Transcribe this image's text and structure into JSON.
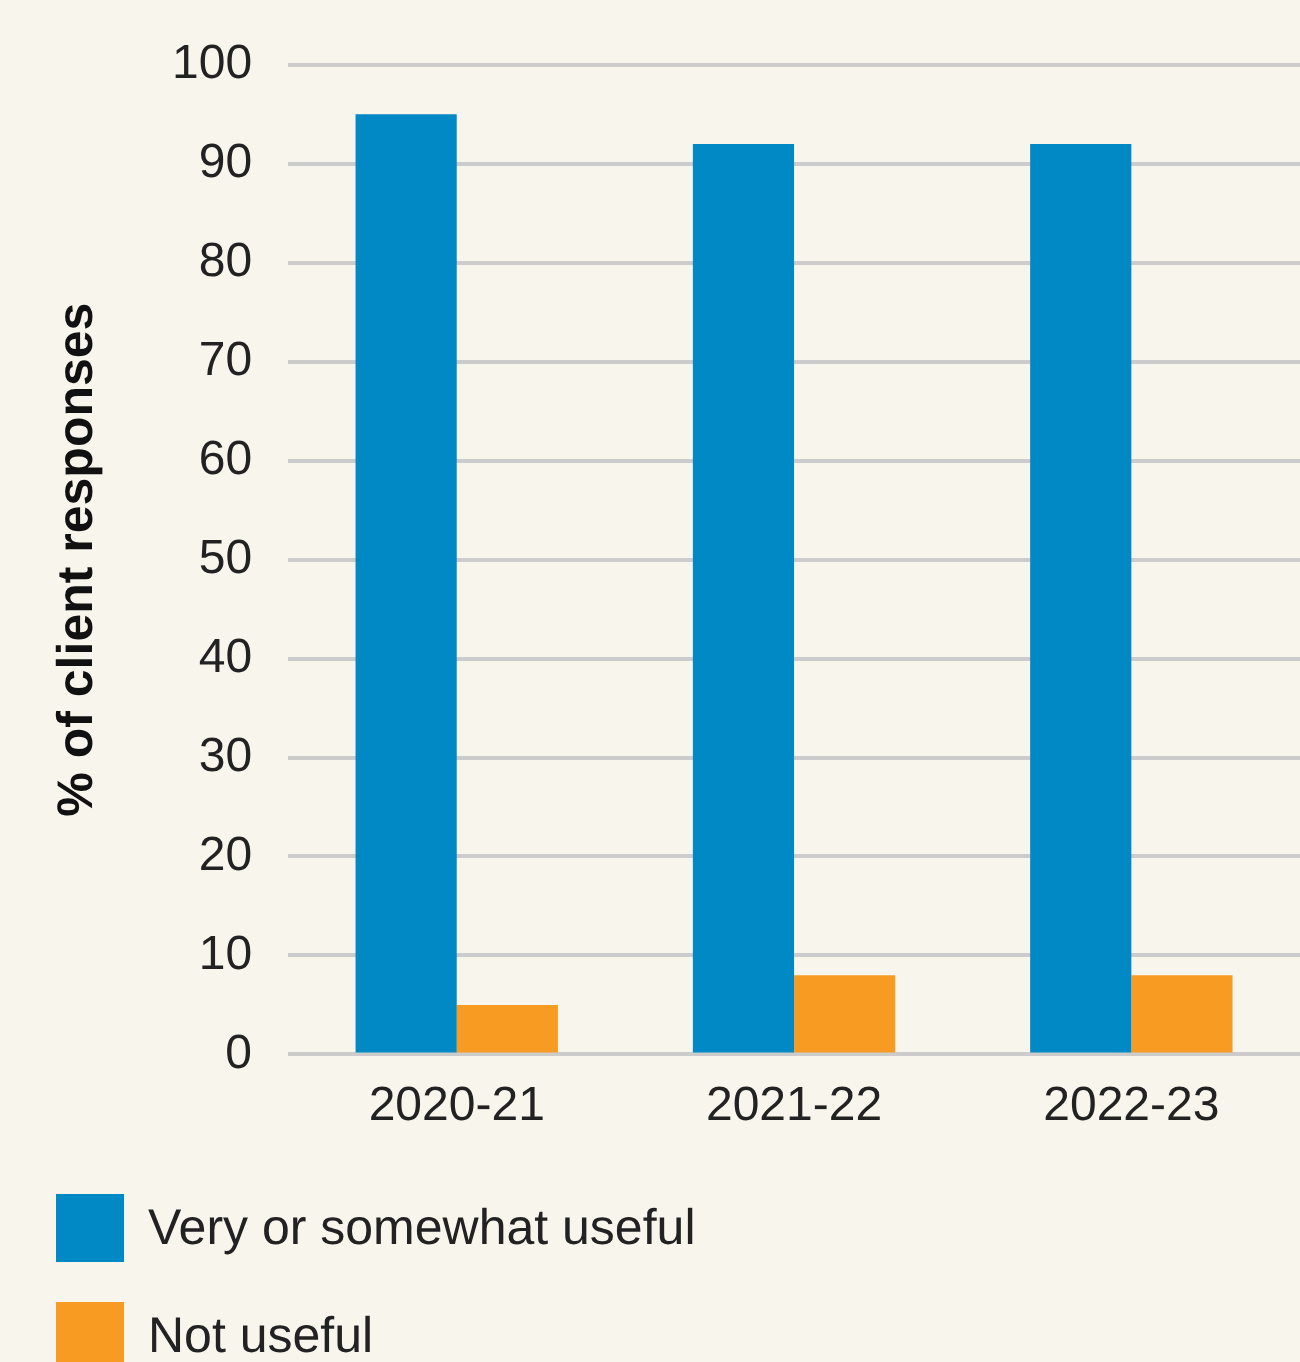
{
  "chart_data": {
    "type": "bar",
    "ylabel": "% of client responses",
    "categories": [
      "2020-21",
      "2021-22",
      "2022-23"
    ],
    "series": [
      {
        "name": "Very or somewhat useful",
        "color": "#0089c5",
        "values": [
          95,
          92,
          92
        ]
      },
      {
        "name": "Not useful",
        "color": "#f89b22",
        "values": [
          5,
          8,
          8
        ]
      }
    ],
    "ylim": [
      0,
      100
    ],
    "yticks": [
      0,
      10,
      20,
      30,
      40,
      50,
      60,
      70,
      80,
      90,
      100
    ],
    "grid": "y",
    "legend": "bottom"
  }
}
